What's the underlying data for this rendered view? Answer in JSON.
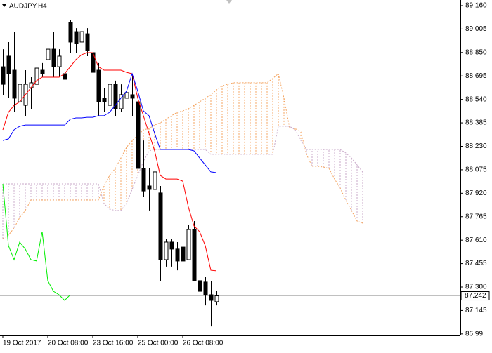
{
  "chart_data": {
    "type": "candlestick",
    "title": "AUDJPY,H4",
    "categories": [
      "19 Oct 2017",
      null,
      null,
      null,
      null,
      null,
      null,
      null,
      "20 Oct 08:00",
      null,
      null,
      null,
      null,
      null,
      null,
      null,
      "23 Oct 16:00",
      null,
      null,
      null,
      null,
      null,
      null,
      null,
      "25 Oct 00:00",
      null,
      null,
      null,
      null,
      null,
      null,
      null,
      "26 Oct 08:00",
      null,
      null,
      null,
      null,
      null,
      null,
      null,
      null,
      null,
      null,
      null,
      null,
      null,
      null,
      null,
      null,
      null,
      null,
      null,
      null,
      null,
      null,
      null,
      null,
      null,
      null,
      null,
      null,
      null,
      null,
      null,
      null
    ],
    "open": [
      88.756,
      88.826,
      88.733,
      88.524,
      88.501,
      88.617,
      88.64,
      88.733,
      88.803,
      88.872,
      88.756,
      88.71,
      89.049,
      88.988,
      88.919,
      88.974,
      88.849,
      88.733,
      88.548,
      88.501,
      88.64,
      88.478,
      88.548,
      88.571,
      88.524,
      88.084,
      87.968,
      87.945,
      87.922,
      87.481,
      87.597,
      87.551,
      87.564,
      87.481,
      87.68,
      87.342,
      87.333,
      87.249,
      87.203,
      null,
      null,
      null,
      null,
      null,
      null,
      null,
      null,
      null,
      null,
      null,
      null,
      null,
      null,
      null,
      null,
      null,
      null,
      null,
      null,
      null,
      null,
      null,
      null,
      null,
      null
    ],
    "high": [
      88.872,
      88.919,
      88.988,
      88.733,
      88.733,
      88.687,
      88.826,
      88.78,
      88.988,
      88.988,
      88.872,
      88.733,
      89.067,
      89.011,
      89.081,
      89.011,
      88.872,
      88.78,
      88.617,
      88.664,
      88.664,
      88.64,
      88.594,
      88.71,
      88.687,
      88.269,
      88.084,
      88.084,
      87.968,
      87.62,
      87.62,
      87.597,
      87.597,
      87.713,
      87.736,
      87.458,
      87.365,
      87.342,
      87.272,
      null,
      null,
      null,
      null,
      null,
      null,
      null,
      null,
      null,
      null,
      null,
      null,
      null,
      null,
      null,
      null,
      null,
      null,
      null,
      null,
      null,
      null,
      null,
      null,
      null,
      null
    ],
    "low": [
      88.571,
      88.548,
      88.455,
      88.432,
      88.432,
      88.478,
      88.617,
      88.687,
      88.71,
      88.687,
      88.687,
      88.64,
      88.849,
      88.849,
      88.872,
      88.826,
      88.687,
      88.432,
      88.455,
      88.478,
      88.432,
      88.455,
      88.478,
      88.432,
      88.061,
      87.898,
      87.806,
      87.898,
      87.342,
      87.435,
      87.435,
      87.411,
      87.295,
      87.481,
      87.342,
      87.272,
      87.179,
      87.04,
      87.179,
      null,
      null,
      null,
      null,
      null,
      null,
      null,
      null,
      null,
      null,
      null,
      null,
      null,
      null,
      null,
      null,
      null,
      null,
      null,
      null,
      null,
      null,
      null,
      null,
      null,
      null
    ],
    "close": [
      88.64,
      88.71,
      88.548,
      88.64,
      88.64,
      88.65,
      88.747,
      88.71,
      88.872,
      88.756,
      88.826,
      88.673,
      88.919,
      88.909,
      88.988,
      88.863,
      88.719,
      88.524,
      88.524,
      88.64,
      88.478,
      88.571,
      88.585,
      88.548,
      88.084,
      87.935,
      87.945,
      88.061,
      87.481,
      87.597,
      87.551,
      87.472,
      87.472,
      87.68,
      87.342,
      87.272,
      87.249,
      87.212,
      87.242,
      null,
      null,
      null,
      null,
      null,
      null,
      null,
      null,
      null,
      null,
      null,
      null,
      null,
      null,
      null,
      null,
      null,
      null,
      null,
      null,
      null,
      null,
      null,
      null,
      null,
      null
    ],
    "lines": [
      {
        "color": "#ff0000",
        "values": [
          88.339,
          88.455,
          88.501,
          88.524,
          88.571,
          88.617,
          88.664,
          88.687,
          88.687,
          88.687,
          88.687,
          88.71,
          88.756,
          88.803,
          88.835,
          88.849,
          88.849,
          88.756,
          88.733,
          88.733,
          88.733,
          88.733,
          88.719,
          88.71,
          88.548,
          88.432,
          88.316,
          88.2,
          88.038,
          88.014,
          88.014,
          88.014,
          88.0,
          87.829,
          87.704,
          87.666,
          87.574,
          87.411,
          87.407,
          null,
          null,
          null,
          null,
          null,
          null,
          null,
          null,
          null,
          null,
          null,
          null,
          null,
          null,
          null,
          null,
          null,
          null,
          null,
          null,
          null,
          null,
          null,
          null,
          null,
          null
        ]
      },
      {
        "color": "#0000ff",
        "values": [
          88.269,
          88.279,
          88.339,
          88.362,
          88.371,
          88.371,
          88.371,
          88.371,
          88.371,
          88.371,
          88.371,
          88.371,
          88.409,
          88.418,
          88.418,
          88.422,
          88.422,
          88.432,
          88.432,
          88.455,
          88.501,
          88.548,
          88.594,
          88.71,
          88.594,
          88.464,
          88.432,
          88.316,
          88.209,
          88.209,
          88.209,
          88.209,
          88.209,
          88.209,
          88.2,
          88.153,
          88.107,
          88.061,
          88.056,
          null,
          null,
          null,
          null,
          null,
          null,
          null,
          null,
          null,
          null,
          null,
          null,
          null,
          null,
          null,
          null,
          null,
          null,
          null,
          null,
          null,
          null,
          null,
          null,
          null,
          null
        ]
      },
      {
        "color": "#00ee00",
        "values": [
          87.982,
          87.574,
          87.481,
          87.597,
          87.551,
          87.481,
          87.472,
          87.666,
          87.342,
          87.272,
          87.249,
          87.212,
          87.249,
          null,
          null,
          null,
          null,
          null,
          null,
          null,
          null,
          null,
          null,
          null,
          null,
          null,
          null,
          null,
          null,
          null,
          null,
          null,
          null,
          null,
          null,
          null,
          null,
          null,
          null,
          null,
          null,
          null,
          null,
          null,
          null,
          null,
          null,
          null,
          null,
          null,
          null,
          null,
          null,
          null,
          null,
          null,
          null,
          null,
          null,
          null,
          null,
          null,
          null,
          null,
          null
        ]
      }
    ],
    "cloud": {
      "up_color": "#f4a460",
      "down_color": "#c8a8c8",
      "span_a": [
        87.62,
        87.643,
        87.69,
        87.759,
        87.806,
        87.875,
        87.875,
        87.875,
        87.875,
        87.875,
        87.875,
        87.875,
        87.875,
        87.875,
        87.875,
        87.875,
        87.875,
        87.875,
        87.968,
        88.038,
        88.084,
        88.153,
        88.223,
        88.269,
        88.302,
        88.339,
        88.348,
        88.371,
        88.385,
        88.409,
        88.432,
        88.455,
        88.464,
        88.478,
        88.501,
        88.524,
        88.548,
        88.571,
        88.603,
        88.631,
        88.64,
        88.65,
        88.65,
        88.65,
        88.65,
        88.65,
        88.65,
        88.65,
        88.678,
        88.71,
        88.548,
        88.353,
        88.348,
        88.325,
        88.177,
        88.098,
        88.098,
        88.093,
        88.084,
        88.014,
        87.954,
        87.875,
        87.806,
        87.736,
        87.722
      ],
      "span_b": [
        87.982,
        87.982,
        87.982,
        87.982,
        87.982,
        87.982,
        87.982,
        87.982,
        87.982,
        87.982,
        87.982,
        87.982,
        87.982,
        87.982,
        87.982,
        87.982,
        87.982,
        87.982,
        87.852,
        87.815,
        87.806,
        87.806,
        87.852,
        87.945,
        88.038,
        88.13,
        88.2,
        88.209,
        88.209,
        88.209,
        88.209,
        88.209,
        88.209,
        88.209,
        88.209,
        88.209,
        88.209,
        88.177,
        88.177,
        88.177,
        88.177,
        88.177,
        88.177,
        88.177,
        88.177,
        88.177,
        88.177,
        88.177,
        88.177,
        88.362,
        88.362,
        88.362,
        88.339,
        88.269,
        88.209,
        88.209,
        88.209,
        88.209,
        88.209,
        88.209,
        88.209,
        88.186,
        88.153,
        88.107,
        88.061
      ]
    },
    "last_price": 87.242,
    "ylim": [
      86.98,
      89.197
    ],
    "yticks": [
      {
        "value": 89.16,
        "label": "89.160"
      },
      89.005,
      {
        "value": 88.85,
        "label": "88.850"
      },
      88.695,
      {
        "value": 88.54,
        "label": "88.540"
      },
      88.385,
      {
        "value": 88.23,
        "label": "88.230"
      },
      88.075,
      {
        "value": 87.92,
        "label": "87.920"
      },
      87.765,
      {
        "value": 87.61,
        "label": "87.610"
      },
      87.455,
      {
        "value": 87.3,
        "label": "87.300"
      },
      87.145,
      86.99
    ]
  }
}
